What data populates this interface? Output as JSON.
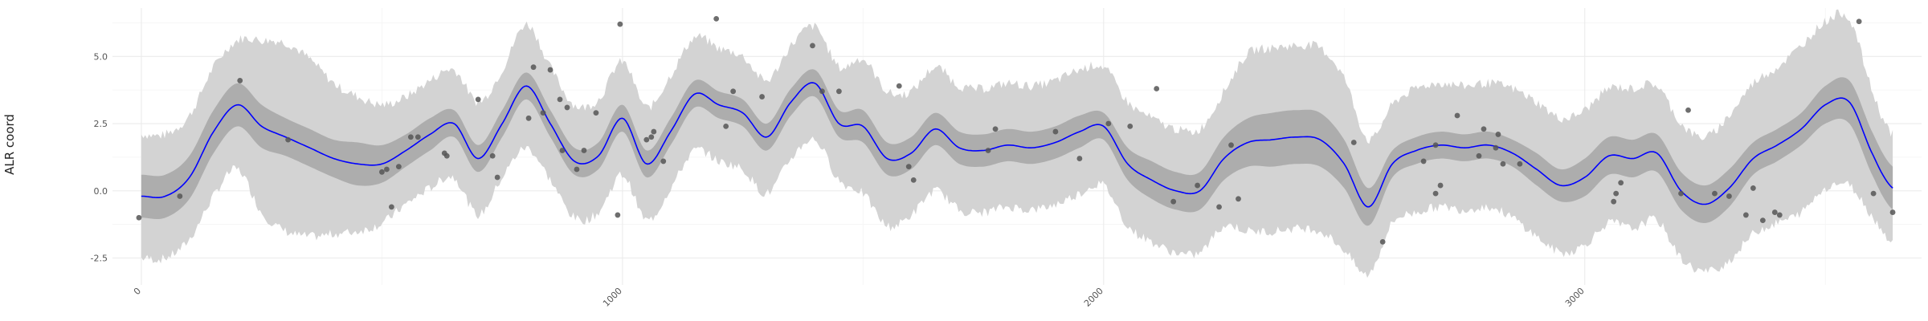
{
  "chart_data": {
    "type": "line",
    "ylabel": "ALR coord",
    "xlim": [
      -60,
      3700
    ],
    "ylim": [
      -3.5,
      6.8
    ],
    "x_ticks": [
      0,
      1000,
      2000,
      3000
    ],
    "x_tick_labels": [
      "0",
      "1000",
      "2000",
      "3000"
    ],
    "y_ticks": [
      -2.5,
      0,
      2.5,
      5
    ],
    "y_tick_labels": [
      "-2.5",
      "0.0",
      "2.5",
      "5.0"
    ],
    "grid": true,
    "colors": {
      "mean_line": "#0000ff",
      "inner_band": "#adadad",
      "outer_band": "#d3d3d3",
      "points": "#555555"
    },
    "mean_curve": {
      "x": [
        0,
        50,
        100,
        150,
        200,
        250,
        300,
        350,
        400,
        450,
        500,
        550,
        600,
        650,
        700,
        750,
        800,
        850,
        900,
        950,
        1000,
        1050,
        1100,
        1150,
        1200,
        1250,
        1300,
        1350,
        1400,
        1450,
        1500,
        1550,
        1600,
        1650,
        1700,
        1750,
        1800,
        1850,
        1900,
        1950,
        2000,
        2050,
        2100,
        2150,
        2200,
        2250,
        2300,
        2350,
        2400,
        2450,
        2500,
        2550,
        2600,
        2650,
        2700,
        2750,
        2800,
        2850,
        2900,
        2950,
        3000,
        3050,
        3100,
        3150,
        3200,
        3250,
        3300,
        3350,
        3400,
        3450,
        3500,
        3550,
        3600,
        3640
      ],
      "y": [
        -0.2,
        -0.2,
        0.5,
        2.2,
        3.2,
        2.4,
        2.0,
        1.6,
        1.2,
        1.0,
        1.0,
        1.5,
        2.1,
        2.5,
        1.2,
        2.5,
        3.9,
        2.5,
        1.1,
        1.3,
        2.7,
        1.0,
        2.2,
        3.6,
        3.2,
        2.9,
        2.0,
        3.3,
        4.0,
        2.5,
        2.4,
        1.2,
        1.4,
        2.3,
        1.6,
        1.5,
        1.7,
        1.6,
        1.8,
        2.2,
        2.4,
        1.0,
        0.4,
        0.0,
        0.0,
        1.2,
        1.8,
        1.9,
        2.0,
        1.9,
        1.0,
        -0.6,
        1.0,
        1.5,
        1.7,
        1.6,
        1.7,
        1.4,
        0.8,
        0.2,
        0.5,
        1.3,
        1.2,
        1.4,
        0.0,
        -0.5,
        0.1,
        1.2,
        1.7,
        2.3,
        3.2,
        3.3,
        1.3,
        0.1
      ]
    },
    "inner_band_halfwidth": [
      0.8,
      0.8,
      0.8,
      0.8,
      0.8,
      0.8,
      0.7,
      0.7,
      0.7,
      0.8,
      0.7,
      0.6,
      0.6,
      0.5,
      0.5,
      0.5,
      0.5,
      0.5,
      0.5,
      0.5,
      0.5,
      0.5,
      0.5,
      0.5,
      0.5,
      0.5,
      0.5,
      0.5,
      0.5,
      0.5,
      0.6,
      0.6,
      0.6,
      0.6,
      0.6,
      0.6,
      0.6,
      0.6,
      0.6,
      0.6,
      0.5,
      0.6,
      0.7,
      0.7,
      0.7,
      0.8,
      0.9,
      1.0,
      1.0,
      1.0,
      0.9,
      0.7,
      0.5,
      0.5,
      0.5,
      0.5,
      0.5,
      0.5,
      0.6,
      0.6,
      0.7,
      0.7,
      0.7,
      0.7,
      0.7,
      0.7,
      0.7,
      0.6,
      0.6,
      0.6,
      0.7,
      0.8,
      0.8,
      0.8
    ],
    "outer_band_halfwidth": [
      2.3,
      2.3,
      2.3,
      2.4,
      2.4,
      3.2,
      3.5,
      3.3,
      2.8,
      2.5,
      2.2,
      2.0,
      2.0,
      2.0,
      2.1,
      2.0,
      2.3,
      2.1,
      2.1,
      2.1,
      2.1,
      2.1,
      2.1,
      2.1,
      2.1,
      2.1,
      2.1,
      2.1,
      2.1,
      2.1,
      2.5,
      2.5,
      2.3,
      2.3,
      2.3,
      2.3,
      2.3,
      2.3,
      2.3,
      2.3,
      2.2,
      2.3,
      2.3,
      2.3,
      2.3,
      2.5,
      3.3,
      3.4,
      3.4,
      3.4,
      3.2,
      2.5,
      2.2,
      2.3,
      2.3,
      2.3,
      2.3,
      2.4,
      2.5,
      2.5,
      2.5,
      2.5,
      2.6,
      2.5,
      2.5,
      2.5,
      2.7,
      2.8,
      2.9,
      3.1,
      3.1,
      3.1,
      2.3,
      2.0
    ],
    "points": {
      "x": [
        -5,
        80,
        205,
        305,
        500,
        510,
        520,
        535,
        560,
        575,
        630,
        635,
        700,
        730,
        740,
        805,
        815,
        835,
        850,
        870,
        875,
        885,
        905,
        920,
        945,
        990,
        995,
        1050,
        1060,
        1065,
        1085,
        1195,
        1215,
        1230,
        1290,
        1395,
        1415,
        1450,
        1575,
        1595,
        1605,
        1760,
        1775,
        1900,
        1950,
        2010,
        2055,
        2110,
        2145,
        2195,
        2240,
        2265,
        2280,
        2520,
        2580,
        2665,
        2690,
        2690,
        2700,
        2735,
        2780,
        2790,
        2815,
        2820,
        2830,
        2865,
        3060,
        3065,
        3075,
        3200,
        3215,
        3270,
        3300,
        3335,
        3350,
        3370,
        3395,
        3405,
        3570,
        3600,
        3640
      ],
      "y": [
        -1.0,
        -0.2,
        4.1,
        1.9,
        0.7,
        0.8,
        -0.6,
        0.9,
        2.0,
        2.0,
        1.4,
        1.3,
        3.4,
        1.3,
        0.5,
        2.7,
        4.6,
        2.9,
        4.5,
        3.4,
        1.5,
        3.1,
        0.8,
        1.5,
        2.9,
        -0.9,
        6.2,
        1.9,
        2.0,
        2.2,
        1.1,
        6.4,
        2.4,
        3.7,
        3.5,
        5.4,
        3.7,
        3.7,
        3.9,
        0.9,
        0.4,
        1.5,
        2.3,
        2.2,
        1.2,
        2.5,
        2.4,
        3.8,
        -0.4,
        0.2,
        -0.6,
        1.7,
        -0.3,
        1.8,
        -1.9,
        1.1,
        1.7,
        -0.1,
        0.2,
        2.8,
        1.3,
        2.3,
        1.6,
        2.1,
        1.0,
        1.0,
        -0.4,
        -0.1,
        0.3,
        -0.1,
        3.0,
        -0.1,
        -0.2,
        -0.9,
        0.1,
        -1.1,
        -0.8,
        -0.9,
        6.3,
        -0.1,
        -0.8
      ]
    }
  }
}
